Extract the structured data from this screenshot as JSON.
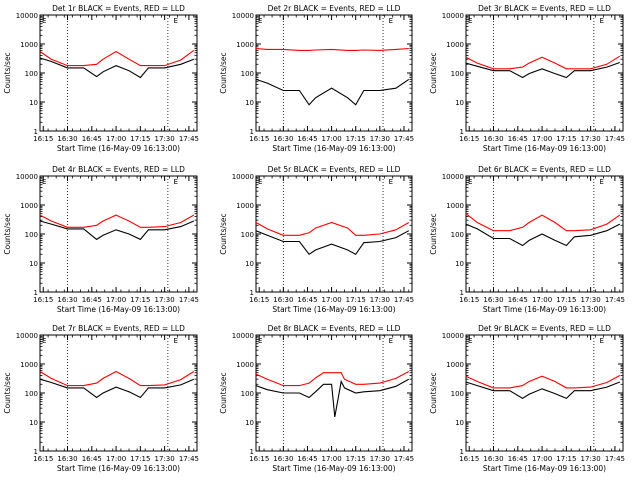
{
  "shared": {
    "xticks": [
      "16:15",
      "16:30",
      "16:45",
      "17:00",
      "17:15",
      "17:30",
      "17:45"
    ],
    "yticks": [
      "1",
      "10",
      "100",
      "1000",
      "10000"
    ],
    "xlabel": "Start Time (16-May-09 16:13:00)",
    "ylabel": "Counts/sec",
    "corner_mark": "E",
    "vlines": [
      "16:30",
      "17:32"
    ],
    "colors": {
      "events": "#000000",
      "lld": "#ff0000",
      "axis": "#000000",
      "background": "#ffffff"
    }
  },
  "chart_data": [
    {
      "type": "line",
      "title": "Det 1r BLACK = Events, RED = LLD",
      "xlabel": "Start Time (16-May-09 16:13:00)",
      "ylabel": "Counts/sec",
      "ylim": [
        1,
        10000
      ],
      "yscale": "log",
      "xlim": [
        "16:13",
        "17:50"
      ],
      "x": [
        "16:13",
        "16:20",
        "16:30",
        "16:40",
        "16:48",
        "16:52",
        "17:00",
        "17:08",
        "17:15",
        "17:20",
        "17:30",
        "17:40",
        "17:48"
      ],
      "series": [
        {
          "name": "Events",
          "values": [
            330,
            250,
            150,
            150,
            75,
            110,
            180,
            120,
            70,
            150,
            150,
            200,
            300
          ]
        },
        {
          "name": "LLD",
          "values": [
            550,
            300,
            180,
            180,
            200,
            300,
            550,
            300,
            180,
            180,
            180,
            280,
            600
          ]
        }
      ]
    },
    {
      "type": "line",
      "title": "Det 2r BLACK = Events, RED = LLD",
      "xlabel": "Start Time (16-May-09 16:13:00)",
      "ylabel": "Counts/sec",
      "ylim": [
        1,
        10000
      ],
      "yscale": "log",
      "xlim": [
        "16:13",
        "17:50"
      ],
      "x": [
        "16:13",
        "16:20",
        "16:30",
        "16:40",
        "16:46",
        "16:50",
        "17:00",
        "17:10",
        "17:15",
        "17:20",
        "17:30",
        "17:40",
        "17:48"
      ],
      "series": [
        {
          "name": "Events",
          "values": [
            60,
            45,
            25,
            25,
            8,
            14,
            30,
            14,
            8,
            25,
            25,
            30,
            60
          ]
        },
        {
          "name": "LLD",
          "values": [
            700,
            650,
            650,
            600,
            600,
            620,
            650,
            600,
            600,
            620,
            600,
            650,
            700
          ]
        }
      ]
    },
    {
      "type": "line",
      "title": "Det 3r BLACK = Events, RED = LLD",
      "xlabel": "Start Time (16-May-09 16:13:00)",
      "ylabel": "Counts/sec",
      "ylim": [
        1,
        10000
      ],
      "yscale": "log",
      "xlim": [
        "16:13",
        "17:50"
      ],
      "x": [
        "16:13",
        "16:20",
        "16:30",
        "16:40",
        "16:48",
        "16:52",
        "17:00",
        "17:08",
        "17:15",
        "17:20",
        "17:30",
        "17:40",
        "17:48"
      ],
      "series": [
        {
          "name": "Events",
          "values": [
            220,
            170,
            120,
            120,
            70,
            95,
            140,
            95,
            70,
            120,
            120,
            160,
            230
          ]
        },
        {
          "name": "LLD",
          "values": [
            350,
            220,
            140,
            140,
            160,
            220,
            350,
            220,
            140,
            140,
            140,
            200,
            380
          ]
        }
      ]
    },
    {
      "type": "line",
      "title": "Det 4r BLACK = Events, RED = LLD",
      "xlabel": "Start Time (16-May-09 16:13:00)",
      "ylabel": "Counts/sec",
      "ylim": [
        1,
        10000
      ],
      "yscale": "log",
      "xlim": [
        "16:13",
        "17:50"
      ],
      "x": [
        "16:13",
        "16:20",
        "16:30",
        "16:40",
        "16:48",
        "16:52",
        "17:00",
        "17:08",
        "17:15",
        "17:20",
        "17:30",
        "17:40",
        "17:48"
      ],
      "series": [
        {
          "name": "Events",
          "values": [
            280,
            220,
            150,
            150,
            65,
            90,
            140,
            100,
            65,
            140,
            140,
            180,
            280
          ]
        },
        {
          "name": "LLD",
          "values": [
            450,
            280,
            170,
            170,
            200,
            280,
            450,
            280,
            170,
            170,
            180,
            250,
            450
          ]
        }
      ]
    },
    {
      "type": "line",
      "title": "Det 5r BLACK = Events, RED = LLD",
      "xlabel": "Start Time (16-May-09 16:13:00)",
      "ylabel": "Counts/sec",
      "ylim": [
        1,
        10000
      ],
      "yscale": "log",
      "xlim": [
        "16:13",
        "17:50"
      ],
      "x": [
        "16:13",
        "16:20",
        "16:30",
        "16:40",
        "16:46",
        "16:50",
        "17:00",
        "17:10",
        "17:15",
        "17:20",
        "17:30",
        "17:40",
        "17:48"
      ],
      "series": [
        {
          "name": "Events",
          "values": [
            130,
            90,
            55,
            55,
            20,
            28,
            45,
            28,
            20,
            50,
            55,
            75,
            130
          ]
        },
        {
          "name": "LLD",
          "values": [
            250,
            150,
            90,
            90,
            110,
            160,
            250,
            160,
            90,
            90,
            100,
            140,
            250
          ]
        }
      ]
    },
    {
      "type": "line",
      "title": "Det 6r BLACK = Events, RED = LLD",
      "xlabel": "Start Time (16-May-09 16:13:00)",
      "ylabel": "Counts/sec",
      "ylim": [
        1,
        10000
      ],
      "yscale": "log",
      "xlim": [
        "16:13",
        "17:50"
      ],
      "x": [
        "16:13",
        "16:20",
        "16:30",
        "16:40",
        "16:48",
        "16:52",
        "17:00",
        "17:08",
        "17:15",
        "17:20",
        "17:30",
        "17:40",
        "17:48"
      ],
      "series": [
        {
          "name": "Events",
          "values": [
            220,
            150,
            70,
            70,
            40,
            60,
            100,
            60,
            40,
            80,
            90,
            130,
            220
          ]
        },
        {
          "name": "LLD",
          "values": [
            500,
            250,
            130,
            130,
            170,
            250,
            450,
            250,
            130,
            130,
            140,
            220,
            450
          ]
        }
      ]
    },
    {
      "type": "line",
      "title": "Det 7r BLACK = Events, RED = LLD",
      "xlabel": "Start Time (16-May-09 16:13:00)",
      "ylabel": "Counts/sec",
      "ylim": [
        1,
        10000
      ],
      "yscale": "log",
      "xlim": [
        "16:13",
        "17:50"
      ],
      "x": [
        "16:13",
        "16:20",
        "16:30",
        "16:40",
        "16:48",
        "16:52",
        "17:00",
        "17:08",
        "17:15",
        "17:20",
        "17:30",
        "17:40",
        "17:48"
      ],
      "series": [
        {
          "name": "Events",
          "values": [
            300,
            230,
            150,
            150,
            70,
            100,
            160,
            110,
            70,
            150,
            150,
            190,
            300
          ]
        },
        {
          "name": "LLD",
          "values": [
            550,
            320,
            180,
            180,
            220,
            320,
            550,
            320,
            180,
            180,
            190,
            290,
            550
          ]
        }
      ]
    },
    {
      "type": "line",
      "title": "Det 8r BLACK = Events, RED = LLD",
      "xlabel": "Start Time (16-May-09 16:13:00)",
      "ylabel": "Counts/sec",
      "ylim": [
        1,
        10000
      ],
      "yscale": "log",
      "xlim": [
        "16:13",
        "17:50"
      ],
      "x": [
        "16:13",
        "16:20",
        "16:30",
        "16:40",
        "16:46",
        "16:50",
        "16:55",
        "17:00",
        "17:02",
        "17:06",
        "17:08",
        "17:15",
        "17:20",
        "17:30",
        "17:40",
        "17:48"
      ],
      "series": [
        {
          "name": "Events",
          "values": [
            180,
            130,
            100,
            100,
            70,
            110,
            200,
            200,
            15,
            250,
            150,
            100,
            110,
            120,
            170,
            300
          ]
        },
        {
          "name": "LLD",
          "values": [
            450,
            300,
            180,
            180,
            220,
            330,
            500,
            500,
            500,
            500,
            300,
            200,
            200,
            220,
            320,
            550
          ]
        }
      ]
    },
    {
      "type": "line",
      "title": "Det 9r BLACK = Events, RED = LLD",
      "xlabel": "Start Time (16-May-09 16:13:00)",
      "ylabel": "Counts/sec",
      "ylim": [
        1,
        10000
      ],
      "yscale": "log",
      "xlim": [
        "16:13",
        "17:50"
      ],
      "x": [
        "16:13",
        "16:20",
        "16:30",
        "16:40",
        "16:48",
        "16:52",
        "17:00",
        "17:08",
        "17:15",
        "17:20",
        "17:30",
        "17:40",
        "17:48"
      ],
      "series": [
        {
          "name": "Events",
          "values": [
            240,
            180,
            120,
            120,
            65,
            90,
            140,
            95,
            65,
            120,
            120,
            160,
            240
          ]
        },
        {
          "name": "LLD",
          "values": [
            380,
            250,
            150,
            150,
            180,
            250,
            380,
            250,
            150,
            150,
            160,
            230,
            400
          ]
        }
      ]
    }
  ]
}
